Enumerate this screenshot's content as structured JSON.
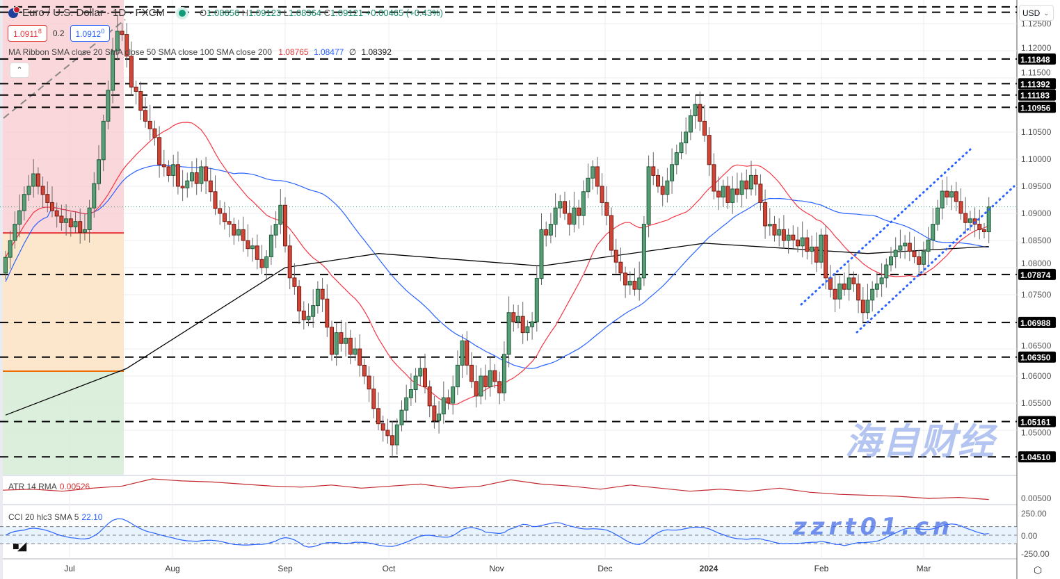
{
  "header": {
    "symbol_title": "Euro / U.S. Dollar · 1D · FXCM",
    "ohlc": {
      "o_label": "O",
      "o": "1.08656",
      "h_label": "H",
      "h": "1.09123",
      "l_label": "L",
      "l": "1.08364",
      "c_label": "C",
      "c": "1.09121",
      "change": "+0.00465 (+0.43%)"
    },
    "status_color": "#129b7a"
  },
  "quotes": {
    "sell_main": "1.0911",
    "sell_pip": "8",
    "spread": "0.2",
    "buy_main": "1.0912",
    "buy_pip": "0"
  },
  "ma_legend": {
    "label": "MA Ribbon SMA close 20 SMA close 50 SMA close 100 SMA close 200",
    "sma20": "1.08765",
    "sma50": "1.08477",
    "sma100": "∅",
    "sma200": "1.08392",
    "colors": {
      "sma20": "#f23645",
      "sma50": "#2962ff",
      "sma200": "#000000"
    }
  },
  "collapse_icon": "chevron-up",
  "currency_select": {
    "value": "USD"
  },
  "atr": {
    "label": "ATR 14 RMA",
    "value": "0.00526",
    "color": "#c2272d",
    "samples": [
      0.0062,
      0.0063,
      0.0061,
      0.0064,
      0.0066,
      0.0073,
      0.0071,
      0.007,
      0.0068,
      0.0066,
      0.0065,
      0.0067,
      0.0064,
      0.0066,
      0.0068,
      0.0064,
      0.0066,
      0.0072,
      0.0068,
      0.0066,
      0.0063,
      0.0067,
      0.0064,
      0.0061,
      0.0063,
      0.0061,
      0.0064,
      0.006,
      0.0058,
      0.0057,
      0.0056,
      0.0054,
      0.0055,
      0.0053
    ]
  },
  "cci": {
    "label": "CCI 20 hlc3 SMA 5",
    "value": "22.10",
    "color": "#2962ff",
    "axis": [
      "250.00",
      "0.00",
      "-250.00"
    ],
    "band": [
      100,
      -100
    ]
  },
  "chart_data": {
    "type": "candlestick",
    "symbol": "EURUSD",
    "timeframe": "1D",
    "ylim": [
      1.0425,
      1.1287
    ],
    "closes": [
      1.0819,
      1.085,
      1.088,
      1.0905,
      1.0935,
      1.095,
      1.0973,
      1.095,
      1.0935,
      1.092,
      1.0905,
      1.0895,
      1.0883,
      1.089,
      1.0875,
      1.0885,
      1.0865,
      1.087,
      1.091,
      1.0955,
      1.0999,
      1.107,
      1.1127,
      1.12,
      1.1236,
      1.123,
      1.119,
      1.1133,
      1.1125,
      1.109,
      1.107,
      1.1056,
      1.104,
      1.099,
      1.0986,
      1.097,
      1.099,
      1.095,
      1.0947,
      1.096,
      1.0975,
      1.0955,
      1.0986,
      1.096,
      1.094,
      1.0909,
      1.09,
      1.0885,
      1.088,
      1.086,
      1.087,
      1.085,
      1.0835,
      1.084,
      1.0815,
      1.08,
      1.082,
      1.086,
      1.088,
      1.0915,
      1.084,
      1.0781,
      1.0765,
      1.072,
      1.0704,
      1.071,
      1.073,
      1.076,
      1.0742,
      1.069,
      1.064,
      1.068,
      1.066,
      1.067,
      1.064,
      1.065,
      1.062,
      1.06,
      1.0576,
      1.054,
      1.0512,
      1.05,
      1.049,
      1.0473,
      1.051,
      1.0537,
      1.056,
      1.0575,
      1.06,
      1.0614,
      1.058,
      1.0545,
      1.0518,
      1.053,
      1.056,
      1.055,
      1.058,
      1.062,
      1.0665,
      1.062,
      1.059,
      1.0563,
      1.06,
      1.058,
      1.061,
      1.059,
      1.0569,
      1.064,
      1.0717,
      1.07,
      1.071,
      1.068,
      1.0691,
      1.07,
      1.078,
      1.087,
      1.086,
      1.088,
      1.091,
      1.0922,
      1.09,
      1.088,
      1.091,
      1.0896,
      1.094,
      1.0965,
      1.0986,
      1.095,
      1.092,
      1.0896,
      1.0832,
      1.081,
      1.079,
      1.0768,
      1.0775,
      1.076,
      1.0781,
      1.088,
      1.0986,
      1.097,
      1.095,
      1.0935,
      1.096,
      1.099,
      1.1012,
      1.103,
      1.105,
      1.108,
      1.1101,
      1.107,
      1.1044,
      1.099,
      1.0941,
      1.093,
      1.095,
      1.092,
      1.0945,
      1.0935,
      1.096,
      1.0945,
      1.097,
      1.0954,
      1.092,
      1.0877,
      1.088,
      1.086,
      1.087,
      1.085,
      1.086,
      1.0851,
      1.084,
      1.0855,
      1.083,
      1.0838,
      1.081,
      1.086,
      1.0781,
      1.076,
      1.0742,
      1.077,
      1.076,
      1.0781,
      1.077,
      1.074,
      1.0717,
      1.074,
      1.076,
      1.077,
      1.0781,
      1.0805,
      1.082,
      1.0832,
      1.084,
      1.0845,
      1.083,
      1.082,
      1.0806,
      1.083,
      1.0851,
      1.088,
      1.091,
      1.0941,
      1.093,
      1.094,
      1.0922,
      1.09,
      1.0883,
      1.089,
      1.088,
      1.087,
      1.0866,
      1.0912
    ],
    "first_open": 1.079,
    "sma200_path": [
      [
        0,
        1.0528
      ],
      [
        26,
        1.0614
      ],
      [
        60,
        1.08
      ],
      [
        80,
        1.0826
      ],
      [
        115,
        1.0803
      ],
      [
        150,
        1.0845
      ],
      [
        185,
        1.0826
      ],
      [
        211,
        1.0839
      ]
    ],
    "levels": [
      {
        "price": 1.1281,
        "label": ""
      },
      {
        "price": 1.1271,
        "label": ""
      },
      {
        "price": 1.11848,
        "label": "1.11848"
      },
      {
        "price": 1.11392,
        "label": "1.11392"
      },
      {
        "price": 1.11183,
        "label": "1.11183"
      },
      {
        "price": 1.10956,
        "label": "1.10956"
      },
      {
        "price": 1.07874,
        "label": "1.07874"
      },
      {
        "price": 1.06988,
        "label": "1.06988"
      },
      {
        "price": 1.0635,
        "label": "1.06350"
      },
      {
        "price": 1.05161,
        "label": "1.05161"
      },
      {
        "price": 1.0451,
        "label": "1.04510"
      }
    ],
    "price_ticks": [
      "1.12500",
      "1.12000",
      "1.11500",
      "1.10500",
      "1.10000",
      "1.09500",
      "1.09000",
      "1.08500",
      "1.08000",
      "1.07500",
      "1.06500",
      "1.06000",
      "1.05500",
      "1.05000"
    ],
    "atr_tick": "0.00500",
    "time_ticks": [
      {
        "label": "Jul",
        "bold": false
      },
      {
        "label": "Aug",
        "bold": false
      },
      {
        "label": "Sep",
        "bold": false
      },
      {
        "label": "Oct",
        "bold": false
      },
      {
        "label": "Nov",
        "bold": false
      },
      {
        "label": "Dec",
        "bold": false
      },
      {
        "label": "2024",
        "bold": true
      },
      {
        "label": "Feb",
        "bold": false
      },
      {
        "label": "Mar",
        "bold": false
      }
    ],
    "position_tool": {
      "entry": 1.0864,
      "target": 1.1287,
      "stop": 1.0609,
      "colors": {
        "profit": "#f8c9cd",
        "loss_upper": "#fde3c3",
        "loss_lower": "#d5ecd6"
      }
    },
    "channel": {
      "color": "#2962ff",
      "style": "dotted"
    },
    "current_price": 1.0912,
    "colors": {
      "up": "#5a9e78",
      "up_border": "#1d5a38",
      "down": "#cf4636",
      "down_border": "#761a14"
    }
  },
  "watermark": {
    "line1": "海自财经",
    "line2": "zzrt01.cn"
  },
  "logo": "TV"
}
